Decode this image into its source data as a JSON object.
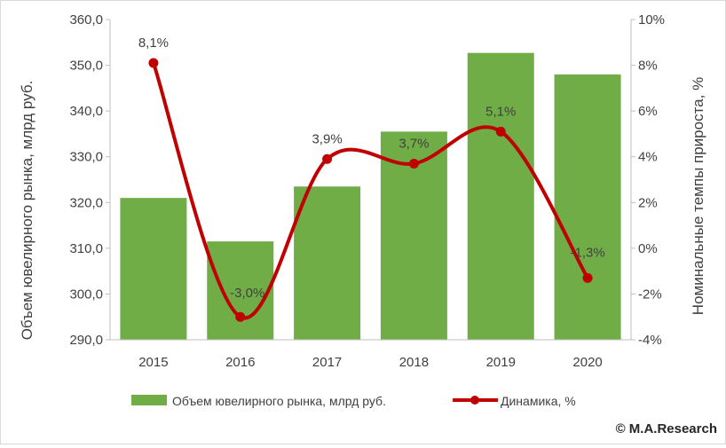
{
  "chart_data": {
    "type": "bar+line",
    "categories": [
      "2015",
      "2016",
      "2017",
      "2018",
      "2019",
      "2020"
    ],
    "series": [
      {
        "name": "Объем ювелирного рынка, млрд руб.",
        "type": "bar",
        "axis": "left",
        "values": [
          321.0,
          311.5,
          323.5,
          335.5,
          352.7,
          348.0
        ],
        "color": "#70ad47"
      },
      {
        "name": "Динамика, %",
        "type": "line",
        "axis": "right",
        "values": [
          8.1,
          -3.0,
          3.9,
          3.7,
          5.1,
          -1.3
        ],
        "labels": [
          "8,1%",
          "-3,0%",
          "3,9%",
          "3,7%",
          "5,1%",
          "-1,3%"
        ],
        "color": "#c00000"
      }
    ],
    "ylabel_left": "Объем ювелирного рынка, млрд руб.",
    "ylabel_right": "Номинальные темпы прироста, %",
    "ylim_left": [
      290,
      360
    ],
    "ylim_right": [
      -4,
      10
    ],
    "yticks_left": [
      "290,0",
      "300,0",
      "310,0",
      "320,0",
      "330,0",
      "340,0",
      "350,0",
      "360,0"
    ],
    "yticks_right": [
      "-4%",
      "-2%",
      "0%",
      "2%",
      "4%",
      "6%",
      "8%",
      "10%"
    ],
    "grid": false,
    "legend_position": "bottom"
  },
  "copyright": "© M.A.Research"
}
